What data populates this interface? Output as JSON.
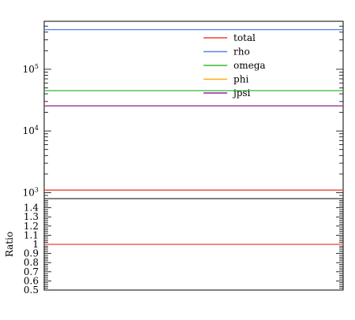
{
  "chart_data": [
    {
      "type": "line",
      "yscale": "log",
      "ylim": [
        800,
        600000
      ],
      "yticks": [
        {
          "value": 1000,
          "base": "10",
          "exp": "3"
        },
        {
          "value": 10000,
          "base": "10",
          "exp": "4"
        },
        {
          "value": 100000,
          "base": "10",
          "exp": "5"
        }
      ],
      "xlabel": "",
      "ylabel": "",
      "legend": {
        "position": "top-center"
      },
      "series": [
        {
          "name": "total",
          "color": "#ee4433",
          "value": 1100
        },
        {
          "name": "rho",
          "color": "#5588dd",
          "value": 440000
        },
        {
          "name": "omega",
          "color": "#33bb33",
          "value": 45000
        },
        {
          "name": "phi",
          "color": "#ffaa11",
          "value": 25500
        },
        {
          "name": "jpsi",
          "color": "#992299",
          "value": 25500
        }
      ]
    },
    {
      "type": "line",
      "ylabel": "Ratio",
      "ylim": [
        0.5,
        1.5
      ],
      "yticklabels": [
        "0.5",
        "0.6",
        "0.7",
        "0.8",
        "0.9",
        "1",
        "1.1",
        "1.2",
        "1.3",
        "1.4"
      ],
      "yticks": [
        0.5,
        0.6,
        0.7,
        0.8,
        0.9,
        1.0,
        1.1,
        1.2,
        1.3,
        1.4
      ],
      "series": [
        {
          "name": "total",
          "color": "#ee4433",
          "value": 1.0
        }
      ]
    }
  ]
}
